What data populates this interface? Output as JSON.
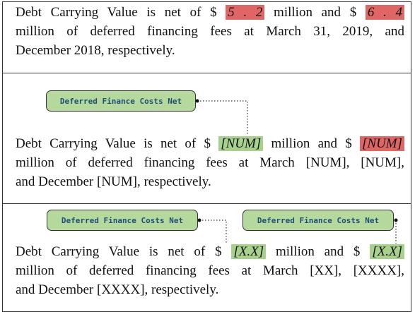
{
  "blocks": [
    {
      "lines": [
        [
          "Debt Carrying Value is net of $ ",
          "5 . 2",
          " million and $ ",
          "6 . 4"
        ],
        [
          "million of deferred financing fees at March 31, 2019, and"
        ],
        [
          "December 2018, respectively."
        ]
      ],
      "labels": []
    },
    {
      "lines": [
        [
          "Debt Carrying Value is net of $ ",
          "[NUM]",
          " million and $ ",
          "[NUM]"
        ],
        [
          "million of deferred financing fees at March [NUM], [NUM],"
        ],
        [
          "and December [NUM], respectively."
        ]
      ],
      "labels": [
        "Deferred Finance Costs Net"
      ]
    },
    {
      "lines": [
        [
          "Debt Carrying Value is net of $ ",
          "[X.X]",
          " million and $ ",
          "[X.X]"
        ],
        [
          "million of deferred financing fees at March [XX], [XXXX],"
        ],
        [
          "and December [XXXX], respectively."
        ]
      ],
      "labels": [
        "Deferred Finance Costs Net",
        "Deferred Finance Costs Net"
      ]
    }
  ]
}
